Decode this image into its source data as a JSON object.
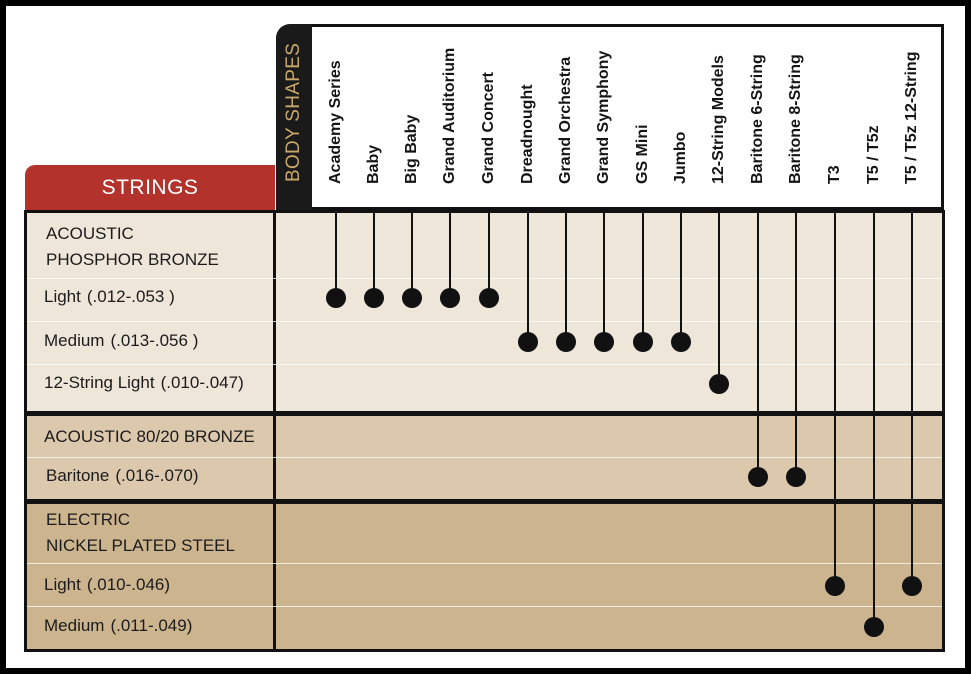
{
  "headers": {
    "strings": "STRINGS",
    "body_shapes": "BODY SHAPES"
  },
  "columns": [
    "Academy Series",
    "Baby",
    "Big Baby",
    "Grand Auditorium",
    "Grand Concert",
    "Dreadnought",
    "Grand Orchestra",
    "Grand Symphony",
    "GS Mini",
    "Jumbo",
    "12-String Models",
    "Baritone 6-String",
    "Baritone 8-String",
    "T3",
    "T5 / T5z",
    "T5 / T5z 12-String"
  ],
  "sections": [
    {
      "title_lines": [
        "ACOUSTIC",
        "PHOSPHOR BRONZE"
      ],
      "color": "#efe6da",
      "rows": [
        {
          "name": "Light",
          "spec": "(.012-.053 )",
          "columns": [
            0,
            1,
            2,
            3,
            4
          ]
        },
        {
          "name": "Medium",
          "spec": "(.013-.056 )",
          "columns": [
            5,
            6,
            7,
            8,
            9
          ]
        },
        {
          "name": "12-String Light",
          "spec": "(.010-.047)",
          "columns": [
            10
          ]
        }
      ]
    },
    {
      "title_lines": [
        "ACOUSTIC 80/20 BRONZE"
      ],
      "color": "#dcc9ad",
      "rows": [
        {
          "name": "Baritone",
          "spec": "(.016-.070)",
          "columns": [
            11,
            12
          ]
        }
      ]
    },
    {
      "title_lines": [
        "ELECTRIC",
        "NICKEL PLATED STEEL"
      ],
      "color": "#ccb48f",
      "rows": [
        {
          "name": "Light",
          "spec": "(.010-.046)",
          "columns": [
            13,
            15
          ]
        },
        {
          "name": "Medium",
          "spec": "(.011-.049)",
          "columns": [
            14
          ]
        }
      ]
    }
  ],
  "colors": {
    "strings_tab": "#b3322c",
    "body_shapes_tab": "#1a1a1a",
    "body_shapes_text": "#c9a86b",
    "marker": "#111111"
  }
}
